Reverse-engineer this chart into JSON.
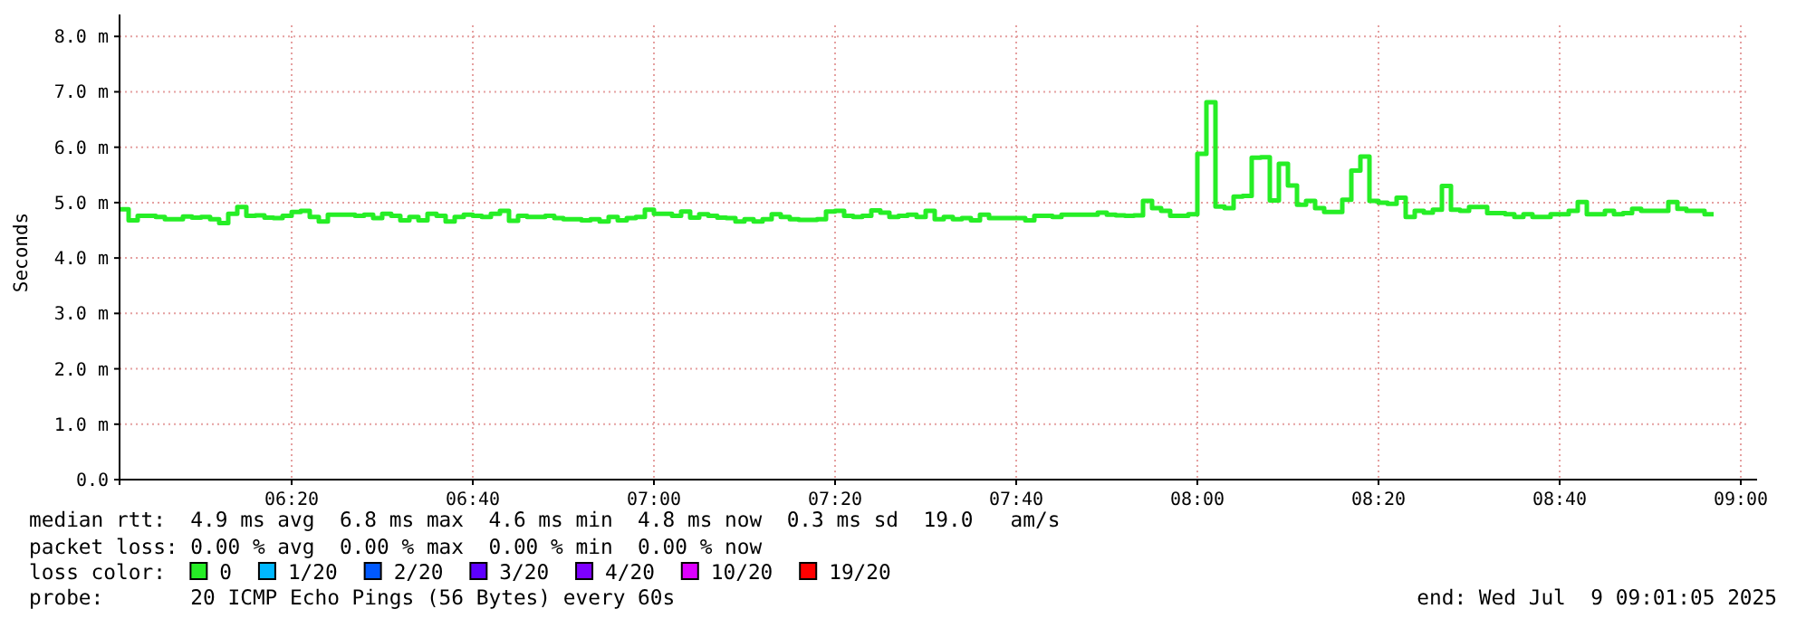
{
  "chart_data": {
    "type": "step",
    "ylabel": "Seconds",
    "ylim": [
      0,
      8.2
    ],
    "yticks": [
      {
        "value": 0,
        "label": "0.0"
      },
      {
        "value": 1,
        "label": "1.0 m"
      },
      {
        "value": 2,
        "label": "2.0 m"
      },
      {
        "value": 3,
        "label": "3.0 m"
      },
      {
        "value": 4,
        "label": "4.0 m"
      },
      {
        "value": 5,
        "label": "5.0 m"
      },
      {
        "value": 6,
        "label": "6.0 m"
      },
      {
        "value": 7,
        "label": "7.0 m"
      },
      {
        "value": 8,
        "label": "8.0 m"
      }
    ],
    "xlim": [
      "2025-07-09T06:01",
      "2025-07-09T09:01"
    ],
    "xticks": [
      {
        "value": "2025-07-09T06:20",
        "label": "06:20"
      },
      {
        "value": "2025-07-09T06:40",
        "label": "06:40"
      },
      {
        "value": "2025-07-09T07:00",
        "label": "07:00"
      },
      {
        "value": "2025-07-09T07:20",
        "label": "07:20"
      },
      {
        "value": "2025-07-09T07:40",
        "label": "07:40"
      },
      {
        "value": "2025-07-09T08:00",
        "label": "08:00"
      },
      {
        "value": "2025-07-09T08:20",
        "label": "08:20"
      },
      {
        "value": "2025-07-09T08:40",
        "label": "08:40"
      },
      {
        "value": "2025-07-09T09:00",
        "label": "09:00"
      }
    ],
    "grid": true,
    "legend": "bottom",
    "legend_title": "loss color:",
    "x": [
      "2025-07-09T06:01",
      "2025-07-09T06:02",
      "2025-07-09T06:03",
      "2025-07-09T06:04",
      "2025-07-09T06:05",
      "2025-07-09T06:06",
      "2025-07-09T06:07",
      "2025-07-09T06:08",
      "2025-07-09T06:09",
      "2025-07-09T06:10",
      "2025-07-09T06:11",
      "2025-07-09T06:12",
      "2025-07-09T06:13",
      "2025-07-09T06:14",
      "2025-07-09T06:15",
      "2025-07-09T06:16",
      "2025-07-09T06:17",
      "2025-07-09T06:18",
      "2025-07-09T06:19",
      "2025-07-09T06:20",
      "2025-07-09T06:21",
      "2025-07-09T06:22",
      "2025-07-09T06:23",
      "2025-07-09T06:24",
      "2025-07-09T06:25",
      "2025-07-09T06:26",
      "2025-07-09T06:27",
      "2025-07-09T06:28",
      "2025-07-09T06:29",
      "2025-07-09T06:30",
      "2025-07-09T06:31",
      "2025-07-09T06:32",
      "2025-07-09T06:33",
      "2025-07-09T06:34",
      "2025-07-09T06:35",
      "2025-07-09T06:36",
      "2025-07-09T06:37",
      "2025-07-09T06:38",
      "2025-07-09T06:39",
      "2025-07-09T06:40",
      "2025-07-09T06:41",
      "2025-07-09T06:42",
      "2025-07-09T06:43",
      "2025-07-09T06:44",
      "2025-07-09T06:45",
      "2025-07-09T06:46",
      "2025-07-09T06:47",
      "2025-07-09T06:48",
      "2025-07-09T06:49",
      "2025-07-09T06:50",
      "2025-07-09T06:51",
      "2025-07-09T06:52",
      "2025-07-09T06:53",
      "2025-07-09T06:54",
      "2025-07-09T06:55",
      "2025-07-09T06:56",
      "2025-07-09T06:57",
      "2025-07-09T06:58",
      "2025-07-09T06:59",
      "2025-07-09T07:00",
      "2025-07-09T07:01",
      "2025-07-09T07:02",
      "2025-07-09T07:03",
      "2025-07-09T07:04",
      "2025-07-09T07:05",
      "2025-07-09T07:06",
      "2025-07-09T07:07",
      "2025-07-09T07:08",
      "2025-07-09T07:09",
      "2025-07-09T07:10",
      "2025-07-09T07:11",
      "2025-07-09T07:12",
      "2025-07-09T07:13",
      "2025-07-09T07:14",
      "2025-07-09T07:15",
      "2025-07-09T07:16",
      "2025-07-09T07:17",
      "2025-07-09T07:18",
      "2025-07-09T07:19",
      "2025-07-09T07:20",
      "2025-07-09T07:21",
      "2025-07-09T07:22",
      "2025-07-09T07:23",
      "2025-07-09T07:24",
      "2025-07-09T07:25",
      "2025-07-09T07:26",
      "2025-07-09T07:27",
      "2025-07-09T07:28",
      "2025-07-09T07:29",
      "2025-07-09T07:30",
      "2025-07-09T07:31",
      "2025-07-09T07:32",
      "2025-07-09T07:33",
      "2025-07-09T07:34",
      "2025-07-09T07:35",
      "2025-07-09T07:36",
      "2025-07-09T07:37",
      "2025-07-09T07:38",
      "2025-07-09T07:39",
      "2025-07-09T07:40",
      "2025-07-09T07:41",
      "2025-07-09T07:42",
      "2025-07-09T07:43",
      "2025-07-09T07:44",
      "2025-07-09T07:45",
      "2025-07-09T07:46",
      "2025-07-09T07:47",
      "2025-07-09T07:48",
      "2025-07-09T07:49",
      "2025-07-09T07:50",
      "2025-07-09T07:51",
      "2025-07-09T07:52",
      "2025-07-09T07:53",
      "2025-07-09T07:54",
      "2025-07-09T07:55",
      "2025-07-09T07:56",
      "2025-07-09T07:57",
      "2025-07-09T07:58",
      "2025-07-09T07:59",
      "2025-07-09T08:00",
      "2025-07-09T08:01",
      "2025-07-09T08:02",
      "2025-07-09T08:03",
      "2025-07-09T08:04",
      "2025-07-09T08:05",
      "2025-07-09T08:06",
      "2025-07-09T08:07",
      "2025-07-09T08:08",
      "2025-07-09T08:09",
      "2025-07-09T08:10",
      "2025-07-09T08:11",
      "2025-07-09T08:12",
      "2025-07-09T08:13",
      "2025-07-09T08:14",
      "2025-07-09T08:15",
      "2025-07-09T08:16",
      "2025-07-09T08:17",
      "2025-07-09T08:18",
      "2025-07-09T08:19",
      "2025-07-09T08:20",
      "2025-07-09T08:21",
      "2025-07-09T08:22",
      "2025-07-09T08:23",
      "2025-07-09T08:24",
      "2025-07-09T08:25",
      "2025-07-09T08:26",
      "2025-07-09T08:27",
      "2025-07-09T08:28",
      "2025-07-09T08:29",
      "2025-07-09T08:30",
      "2025-07-09T08:31",
      "2025-07-09T08:32",
      "2025-07-09T08:33",
      "2025-07-09T08:34",
      "2025-07-09T08:35",
      "2025-07-09T08:36",
      "2025-07-09T08:37",
      "2025-07-09T08:38",
      "2025-07-09T08:39",
      "2025-07-09T08:40",
      "2025-07-09T08:41",
      "2025-07-09T08:42",
      "2025-07-09T08:43",
      "2025-07-09T08:44",
      "2025-07-09T08:45",
      "2025-07-09T08:46",
      "2025-07-09T08:47",
      "2025-07-09T08:48",
      "2025-07-09T08:49",
      "2025-07-09T08:50",
      "2025-07-09T08:51",
      "2025-07-09T08:52",
      "2025-07-09T08:53",
      "2025-07-09T08:54",
      "2025-07-09T08:55",
      "2025-07-09T08:56",
      "2025-07-09T08:57"
    ],
    "series": [
      {
        "name": "0",
        "color": "#26ee26",
        "values": [
          4.88,
          4.68,
          4.76,
          4.76,
          4.74,
          4.7,
          4.7,
          4.75,
          4.73,
          4.74,
          4.7,
          4.63,
          4.8,
          4.92,
          4.76,
          4.77,
          4.73,
          4.72,
          4.76,
          4.83,
          4.85,
          4.74,
          4.66,
          4.78,
          4.78,
          4.78,
          4.76,
          4.78,
          4.72,
          4.8,
          4.76,
          4.68,
          4.74,
          4.68,
          4.8,
          4.76,
          4.66,
          4.74,
          4.78,
          4.76,
          4.74,
          4.8,
          4.85,
          4.67,
          4.76,
          4.74,
          4.74,
          4.76,
          4.72,
          4.7,
          4.7,
          4.68,
          4.7,
          4.66,
          4.74,
          4.68,
          4.72,
          4.74,
          4.87,
          4.8,
          4.8,
          4.76,
          4.84,
          4.73,
          4.79,
          4.76,
          4.73,
          4.72,
          4.66,
          4.7,
          4.66,
          4.7,
          4.79,
          4.74,
          4.7,
          4.69,
          4.69,
          4.7,
          4.84,
          4.85,
          4.76,
          4.74,
          4.76,
          4.86,
          4.82,
          4.74,
          4.76,
          4.78,
          4.74,
          4.85,
          4.7,
          4.74,
          4.7,
          4.72,
          4.68,
          4.78,
          4.72,
          4.72,
          4.72,
          4.72,
          4.68,
          4.76,
          4.76,
          4.74,
          4.78,
          4.78,
          4.78,
          4.78,
          4.82,
          4.78,
          4.77,
          4.76,
          4.77,
          5.03,
          4.9,
          4.85,
          4.76,
          4.76,
          4.79,
          5.88,
          6.81,
          4.93,
          4.9,
          5.11,
          5.12,
          5.81,
          5.82,
          5.04,
          5.7,
          5.31,
          4.96,
          5.03,
          4.9,
          4.83,
          4.83,
          5.05,
          5.58,
          5.83,
          5.03,
          5.0,
          4.98,
          5.09,
          4.74,
          4.85,
          4.82,
          4.87,
          5.3,
          4.87,
          4.85,
          4.92,
          4.92,
          4.81,
          4.81,
          4.79,
          4.74,
          4.79,
          4.74,
          4.74,
          4.79,
          4.79,
          4.85,
          5.01,
          4.79,
          4.79,
          4.85,
          4.79,
          4.81,
          4.89,
          4.85,
          4.85,
          4.85,
          5.01,
          4.89,
          4.85,
          4.85,
          4.79,
          4.79
        ]
      },
      {
        "name": "1/20",
        "color": "#00b8ff",
        "values": [
          null,
          null,
          null,
          null,
          null,
          null,
          null,
          null,
          null,
          null,
          null,
          null,
          null,
          null,
          null,
          null,
          null,
          null,
          null,
          null,
          null,
          null,
          null,
          null,
          null,
          null,
          null,
          null,
          null,
          null,
          null,
          null,
          null,
          null,
          null,
          null,
          null,
          null,
          null,
          null,
          null,
          null,
          null,
          null,
          null,
          null,
          null,
          null,
          null,
          null,
          null,
          null,
          null,
          null,
          null,
          null,
          null,
          null,
          null,
          null,
          null,
          null,
          null,
          null,
          null,
          null,
          null,
          null,
          null,
          null,
          null,
          null,
          null,
          null,
          null,
          null,
          null,
          null,
          null,
          null,
          null,
          null,
          null,
          null,
          null,
          null,
          null,
          null,
          null,
          null,
          null,
          null,
          null,
          null,
          null,
          null,
          null,
          null,
          null,
          null,
          null,
          null,
          null,
          null,
          null,
          null,
          null,
          null,
          null,
          null,
          null,
          null,
          null,
          null,
          null,
          null,
          null,
          null,
          null,
          null,
          null,
          null,
          null,
          null,
          null,
          null,
          null,
          null,
          null,
          null,
          null,
          null,
          null,
          null,
          null,
          null,
          null,
          null,
          null,
          null,
          null,
          null,
          null,
          null,
          null,
          null,
          null,
          null,
          null,
          null,
          null,
          null,
          null,
          null,
          null,
          null,
          null,
          null,
          null,
          null,
          null,
          null,
          null,
          null,
          null,
          null,
          null,
          null,
          null,
          null,
          null,
          null,
          null,
          null,
          null,
          null,
          null
        ]
      },
      {
        "name": "2/20",
        "color": "#0059ff",
        "values": [
          null,
          null,
          null,
          null,
          null,
          null,
          null,
          null,
          null,
          null,
          null,
          null,
          null,
          null,
          null,
          null,
          null,
          null,
          null,
          null,
          null,
          null,
          null,
          null,
          null,
          null,
          null,
          null,
          null,
          null,
          null,
          null,
          null,
          null,
          null,
          null,
          null,
          null,
          null,
          null,
          null,
          null,
          null,
          null,
          null,
          null,
          null,
          null,
          null,
          null,
          null,
          null,
          null,
          null,
          null,
          null,
          null,
          null,
          null,
          null,
          null,
          null,
          null,
          null,
          null,
          null,
          null,
          null,
          null,
          null,
          null,
          null,
          null,
          null,
          null,
          null,
          null,
          null,
          null,
          null,
          null,
          null,
          null,
          null,
          null,
          null,
          null,
          null,
          null,
          null,
          null,
          null,
          null,
          null,
          null,
          null,
          null,
          null,
          null,
          null,
          null,
          null,
          null,
          null,
          null,
          null,
          null,
          null,
          null,
          null,
          null,
          null,
          null,
          null,
          null,
          null,
          null,
          null,
          null,
          null,
          null,
          null,
          null,
          null,
          null,
          null,
          null,
          null,
          null,
          null,
          null,
          null,
          null,
          null,
          null,
          null,
          null,
          null,
          null,
          null,
          null,
          null,
          null,
          null,
          null,
          null,
          null,
          null,
          null,
          null,
          null,
          null,
          null,
          null,
          null,
          null,
          null,
          null,
          null,
          null,
          null,
          null,
          null,
          null,
          null,
          null,
          null,
          null,
          null,
          null,
          null,
          null,
          null,
          null,
          null,
          null,
          null
        ]
      },
      {
        "name": "3/20",
        "color": "#5e00ff",
        "values": [
          null,
          null,
          null,
          null,
          null,
          null,
          null,
          null,
          null,
          null,
          null,
          null,
          null,
          null,
          null,
          null,
          null,
          null,
          null,
          null,
          null,
          null,
          null,
          null,
          null,
          null,
          null,
          null,
          null,
          null,
          null,
          null,
          null,
          null,
          null,
          null,
          null,
          null,
          null,
          null,
          null,
          null,
          null,
          null,
          null,
          null,
          null,
          null,
          null,
          null,
          null,
          null,
          null,
          null,
          null,
          null,
          null,
          null,
          null,
          null,
          null,
          null,
          null,
          null,
          null,
          null,
          null,
          null,
          null,
          null,
          null,
          null,
          null,
          null,
          null,
          null,
          null,
          null,
          null,
          null,
          null,
          null,
          null,
          null,
          null,
          null,
          null,
          null,
          null,
          null,
          null,
          null,
          null,
          null,
          null,
          null,
          null,
          null,
          null,
          null,
          null,
          null,
          null,
          null,
          null,
          null,
          null,
          null,
          null,
          null,
          null,
          null,
          null,
          null,
          null,
          null,
          null,
          null,
          null,
          null,
          null,
          null,
          null,
          null,
          null,
          null,
          null,
          null,
          null,
          null,
          null,
          null,
          null,
          null,
          null,
          null,
          null,
          null,
          null,
          null,
          null,
          null,
          null,
          null,
          null,
          null,
          null,
          null,
          null,
          null,
          null,
          null,
          null,
          null,
          null,
          null,
          null,
          null,
          null,
          null,
          null,
          null,
          null,
          null,
          null,
          null,
          null,
          null,
          null,
          null,
          null,
          null,
          null,
          null,
          null,
          null,
          null
        ]
      },
      {
        "name": "4/20",
        "color": "#7e00ff",
        "values": [
          null,
          null,
          null,
          null,
          null,
          null,
          null,
          null,
          null,
          null,
          null,
          null,
          null,
          null,
          null,
          null,
          null,
          null,
          null,
          null,
          null,
          null,
          null,
          null,
          null,
          null,
          null,
          null,
          null,
          null,
          null,
          null,
          null,
          null,
          null,
          null,
          null,
          null,
          null,
          null,
          null,
          null,
          null,
          null,
          null,
          null,
          null,
          null,
          null,
          null,
          null,
          null,
          null,
          null,
          null,
          null,
          null,
          null,
          null,
          null,
          null,
          null,
          null,
          null,
          null,
          null,
          null,
          null,
          null,
          null,
          null,
          null,
          null,
          null,
          null,
          null,
          null,
          null,
          null,
          null,
          null,
          null,
          null,
          null,
          null,
          null,
          null,
          null,
          null,
          null,
          null,
          null,
          null,
          null,
          null,
          null,
          null,
          null,
          null,
          null,
          null,
          null,
          null,
          null,
          null,
          null,
          null,
          null,
          null,
          null,
          null,
          null,
          null,
          null,
          null,
          null,
          null,
          null,
          null,
          null,
          null,
          null,
          null,
          null,
          null,
          null,
          null,
          null,
          null,
          null,
          null,
          null,
          null,
          null,
          null,
          null,
          null,
          null,
          null,
          null,
          null,
          null,
          null,
          null,
          null,
          null,
          null,
          null,
          null,
          null,
          null,
          null,
          null,
          null,
          null,
          null,
          null,
          null,
          null,
          null,
          null,
          null,
          null,
          null,
          null,
          null,
          null,
          null,
          null,
          null,
          null,
          null,
          null,
          null,
          null,
          null,
          null
        ]
      },
      {
        "name": "10/20",
        "color": "#dd00ff",
        "values": [
          null,
          null,
          null,
          null,
          null,
          null,
          null,
          null,
          null,
          null,
          null,
          null,
          null,
          null,
          null,
          null,
          null,
          null,
          null,
          null,
          null,
          null,
          null,
          null,
          null,
          null,
          null,
          null,
          null,
          null,
          null,
          null,
          null,
          null,
          null,
          null,
          null,
          null,
          null,
          null,
          null,
          null,
          null,
          null,
          null,
          null,
          null,
          null,
          null,
          null,
          null,
          null,
          null,
          null,
          null,
          null,
          null,
          null,
          null,
          null,
          null,
          null,
          null,
          null,
          null,
          null,
          null,
          null,
          null,
          null,
          null,
          null,
          null,
          null,
          null,
          null,
          null,
          null,
          null,
          null,
          null,
          null,
          null,
          null,
          null,
          null,
          null,
          null,
          null,
          null,
          null,
          null,
          null,
          null,
          null,
          null,
          null,
          null,
          null,
          null,
          null,
          null,
          null,
          null,
          null,
          null,
          null,
          null,
          null,
          null,
          null,
          null,
          null,
          null,
          null,
          null,
          null,
          null,
          null,
          null,
          null,
          null,
          null,
          null,
          null,
          null,
          null,
          null,
          null,
          null,
          null,
          null,
          null,
          null,
          null,
          null,
          null,
          null,
          null,
          null,
          null,
          null,
          null,
          null,
          null,
          null,
          null,
          null,
          null,
          null,
          null,
          null,
          null,
          null,
          null,
          null,
          null,
          null,
          null,
          null,
          null,
          null,
          null,
          null,
          null,
          null,
          null,
          null,
          null,
          null,
          null,
          null,
          null,
          null,
          null,
          null,
          null
        ]
      },
      {
        "name": "19/20",
        "color": "#ff0000",
        "values": [
          null,
          null,
          null,
          null,
          null,
          null,
          null,
          null,
          null,
          null,
          null,
          null,
          null,
          null,
          null,
          null,
          null,
          null,
          null,
          null,
          null,
          null,
          null,
          null,
          null,
          null,
          null,
          null,
          null,
          null,
          null,
          null,
          null,
          null,
          null,
          null,
          null,
          null,
          null,
          null,
          null,
          null,
          null,
          null,
          null,
          null,
          null,
          null,
          null,
          null,
          null,
          null,
          null,
          null,
          null,
          null,
          null,
          null,
          null,
          null,
          null,
          null,
          null,
          null,
          null,
          null,
          null,
          null,
          null,
          null,
          null,
          null,
          null,
          null,
          null,
          null,
          null,
          null,
          null,
          null,
          null,
          null,
          null,
          null,
          null,
          null,
          null,
          null,
          null,
          null,
          null,
          null,
          null,
          null,
          null,
          null,
          null,
          null,
          null,
          null,
          null,
          null,
          null,
          null,
          null,
          null,
          null,
          null,
          null,
          null,
          null,
          null,
          null,
          null,
          null,
          null,
          null,
          null,
          null,
          null,
          null,
          null,
          null,
          null,
          null,
          null,
          null,
          null,
          null,
          null,
          null,
          null,
          null,
          null,
          null,
          null,
          null,
          null,
          null,
          null,
          null,
          null,
          null,
          null,
          null,
          null,
          null,
          null,
          null,
          null,
          null,
          null,
          null,
          null,
          null,
          null,
          null,
          null,
          null,
          null,
          null,
          null,
          null,
          null,
          null,
          null,
          null,
          null,
          null,
          null,
          null,
          null,
          null,
          null,
          null,
          null,
          null
        ]
      }
    ],
    "annotations": [
      "median rtt:  4.9 ms avg  6.8 ms max  4.6 ms min  4.8 ms now  0.3 ms sd  19.0   am/s",
      "packet loss: 0.00 % avg  0.00 % max  0.00 % min  0.00 % now",
      "probe:       20 ICMP Echo Pings (56 Bytes) every 60s",
      "end: Wed Jul  9 09:01:05 2025"
    ]
  }
}
